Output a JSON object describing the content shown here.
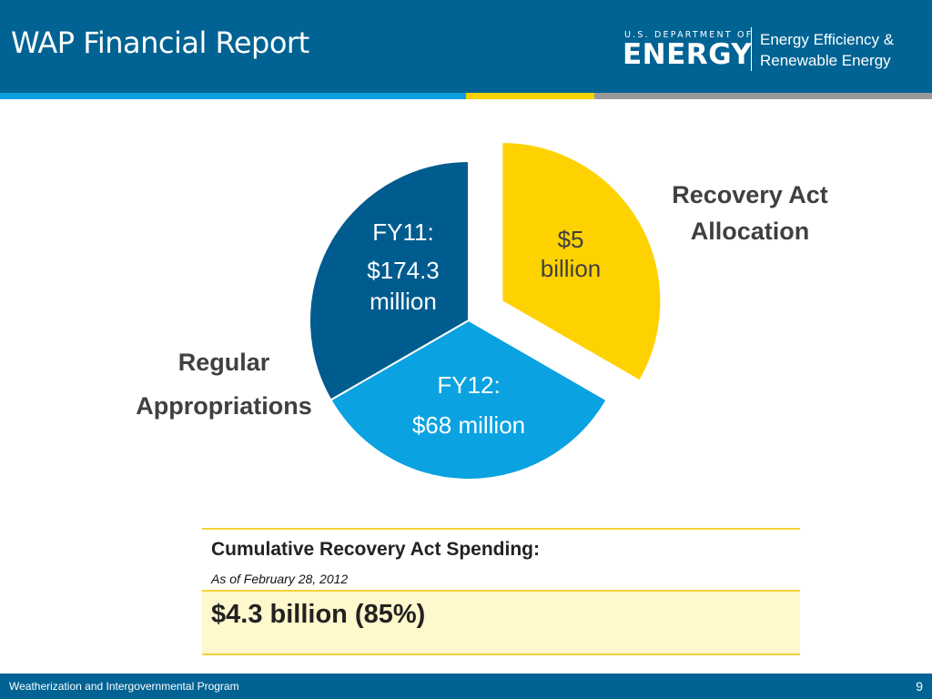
{
  "header": {
    "title": "WAP Financial Report",
    "logo": {
      "department": "U.S. DEPARTMENT OF",
      "wordmark": "ENERGY",
      "office_line1": "Energy Efficiency &",
      "office_line2": "Renewable Energy"
    }
  },
  "colors": {
    "header_blue": "#006393",
    "stripe": [
      "#0aa0e0",
      "#f8d200",
      "#9a9a9a"
    ],
    "slice_fy11": "#005c8e",
    "slice_fy12": "#0aa2e1",
    "slice_recovery": "#fed200"
  },
  "chart_data": {
    "type": "pie",
    "slices": [
      {
        "label_line1": "FY11:",
        "label_line2": "$174.3",
        "label_line3": "million",
        "value": 120,
        "color": "#005c8e",
        "exploded": false
      },
      {
        "label_line1": "FY12:",
        "label_line2": "$68 million",
        "value": 120,
        "color": "#0aa2e1",
        "exploded": false
      },
      {
        "label_line1": "$5",
        "label_line2": "billion",
        "value": 120,
        "color": "#fed200",
        "exploded": true
      }
    ],
    "group_labels": {
      "recovery_line1": "Recovery Act",
      "recovery_line2": "Allocation",
      "regular_line1": "Regular",
      "regular_line2": "Appropriations"
    }
  },
  "spending": {
    "heading": "Cumulative Recovery Act Spending:",
    "as_of": "As of February 28, 2012",
    "total": "$4.3 billion (85%)"
  },
  "footer": {
    "program": "Weatherization and Intergovernmental Program",
    "page_number": "9"
  }
}
